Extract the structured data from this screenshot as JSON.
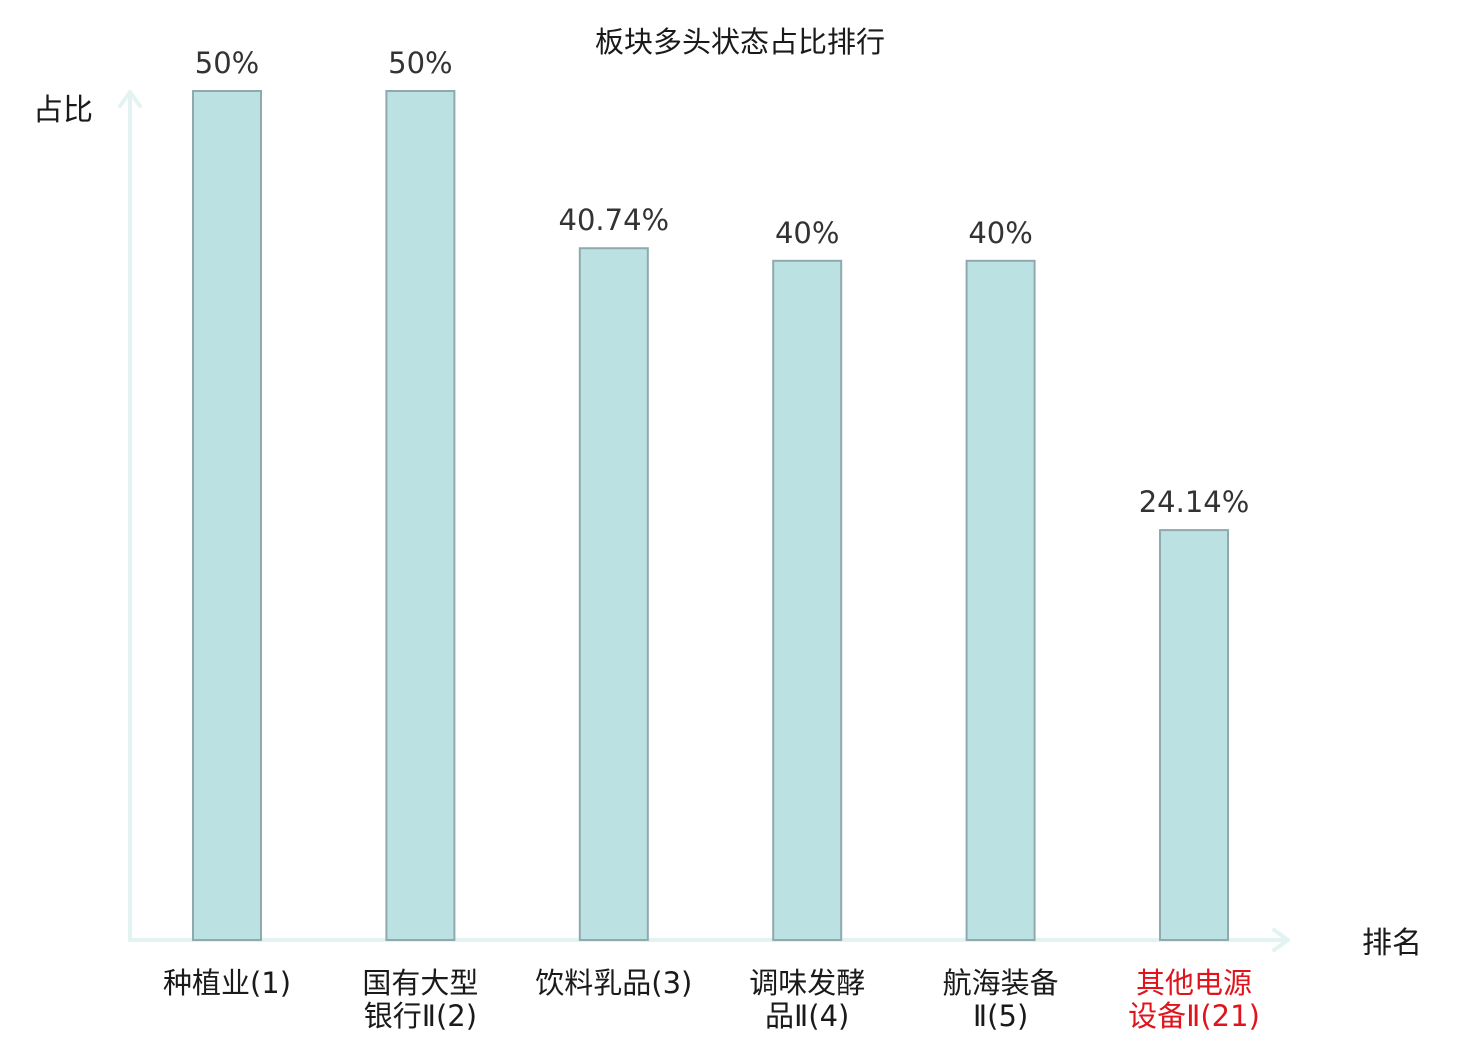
{
  "chart_data": {
    "type": "bar",
    "title": "板块多头状态占比排行",
    "ylabel": "占比",
    "xlabel": "排名",
    "ylim": [
      0,
      50
    ],
    "grid": false,
    "categories": [
      [
        "种植业(1)"
      ],
      [
        "国有大型",
        "银行Ⅱ(2)"
      ],
      [
        "饮料乳品(3)"
      ],
      [
        "调味发酵",
        "品Ⅱ(4)"
      ],
      [
        "航海装备",
        "Ⅱ(5)"
      ],
      [
        "其他电源",
        "设备Ⅱ(21)"
      ]
    ],
    "values": [
      50,
      50,
      40.74,
      40,
      40,
      24.14
    ],
    "value_labels": [
      "50%",
      "50%",
      "40.74%",
      "40%",
      "40%",
      "24.14%"
    ],
    "highlight_index": 5
  },
  "colors": {
    "bar_fill": "#bce1e3",
    "bar_stroke": "#8eaaae",
    "axis": "#e2f3f1",
    "highlight_label": "#e0141c"
  }
}
